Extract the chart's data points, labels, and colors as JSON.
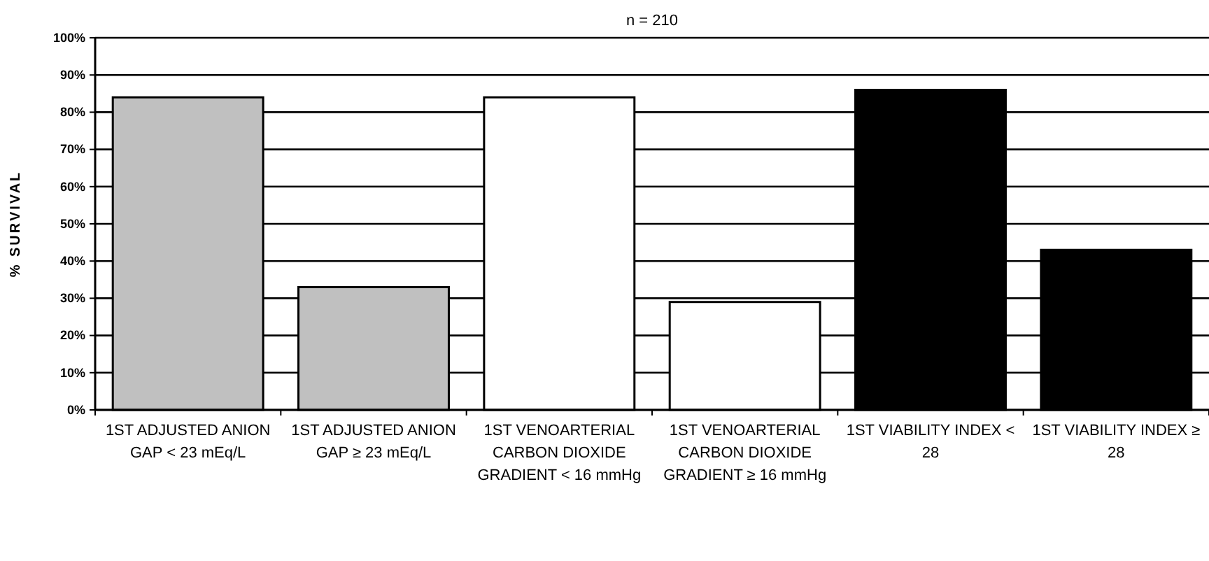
{
  "chart_data": {
    "type": "bar",
    "title": "n = 210",
    "ylabel": "% SURVIVAL",
    "categories": [
      "1ST ADJUSTED ANION GAP < 23 mEq/L",
      "1ST ADJUSTED ANION GAP ≥ 23 mEq/L",
      "1ST VENOARTERIAL CARBON DIOXIDE GRADIENT < 16 mmHg",
      "1ST VENOARTERIAL CARBON DIOXIDE GRADIENT ≥ 16 mmHg",
      "1ST VIABILITY INDEX < 28",
      "1ST VIABILITY INDEX ≥ 28"
    ],
    "values": [
      84,
      33,
      84,
      29,
      86,
      43
    ],
    "colors": [
      "#c0c0c0",
      "#c0c0c0",
      "#ffffff",
      "#ffffff",
      "#000000",
      "#000000"
    ],
    "ylim": [
      0,
      100
    ],
    "yticks": [
      {
        "value": 0,
        "label": "0%"
      },
      {
        "value": 10,
        "label": "10%"
      },
      {
        "value": 20,
        "label": "20%"
      },
      {
        "value": 30,
        "label": "30%"
      },
      {
        "value": 40,
        "label": "40%"
      },
      {
        "value": 50,
        "label": "50%"
      },
      {
        "value": 60,
        "label": "60%"
      },
      {
        "value": 70,
        "label": "70%"
      },
      {
        "value": 80,
        "label": "80%"
      },
      {
        "value": 90,
        "label": "90%"
      },
      {
        "value": 100,
        "label": "100%"
      }
    ],
    "grid": "y"
  }
}
